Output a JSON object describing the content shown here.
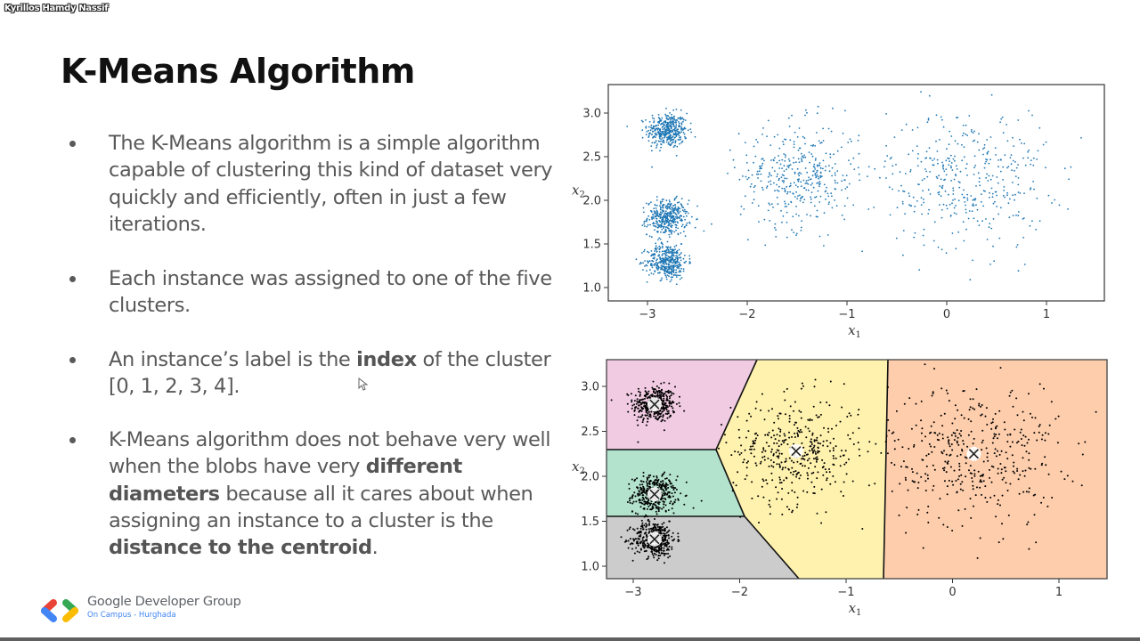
{
  "presenter": {
    "name": "Kyrillos Hamdy Nassif"
  },
  "slide": {
    "title": "K-Means Algorithm",
    "bullets": [
      {
        "parts": [
          {
            "text": "The K-Means algorithm is a simple algorithm capable of clustering this kind of dataset very quickly and efficiently, often in just a few iterations.",
            "bold": false
          }
        ]
      },
      {
        "parts": [
          {
            "text": "Each instance was assigned to one of the five clusters.",
            "bold": false
          }
        ]
      },
      {
        "parts": [
          {
            "text": "An instance’s label is the ",
            "bold": false
          },
          {
            "text": "index",
            "bold": true
          },
          {
            "text": " of the cluster [0, 1, 2, 3, 4].",
            "bold": false
          }
        ]
      },
      {
        "parts": [
          {
            "text": "K-Means algorithm does not behave very well when the blobs have very ",
            "bold": false
          },
          {
            "text": "different diameters",
            "bold": true
          },
          {
            "text": " because all it cares about when assigning an instance to a cluster is the ",
            "bold": false
          },
          {
            "text": "distance to the centroid",
            "bold": true
          },
          {
            "text": ".",
            "bold": false
          }
        ]
      }
    ]
  },
  "logo": {
    "name": "Google Developer Group",
    "subtitle": "On Campus - Hurghada",
    "colors": {
      "red": "#ea4335",
      "blue": "#4285f4",
      "green": "#34a853",
      "yellow": "#fbbc04"
    }
  },
  "chart_data": [
    {
      "type": "scatter",
      "title": "",
      "xlabel": "x1",
      "ylabel": "x2",
      "xlim": [
        -3.4,
        1.55
      ],
      "ylim": [
        0.85,
        3.3
      ],
      "xticks": [
        -3,
        -2,
        -1,
        0,
        1
      ],
      "yticks": [
        1.0,
        1.5,
        2.0,
        2.5,
        3.0
      ],
      "xtick_labels": [
        "−3",
        "−2",
        "−1",
        "0",
        "1"
      ],
      "ytick_labels": [
        "1.0",
        "1.5",
        "2.0",
        "2.5",
        "3.0"
      ],
      "grid": false,
      "point_color": "#1f77b4",
      "blobs": [
        {
          "center": [
            -2.8,
            2.8
          ],
          "std": 0.1,
          "n": 400
        },
        {
          "center": [
            -2.8,
            1.8
          ],
          "std": 0.1,
          "n": 400
        },
        {
          "center": [
            -2.8,
            1.3
          ],
          "std": 0.1,
          "n": 400
        },
        {
          "center": [
            -1.47,
            2.28
          ],
          "std": 0.3,
          "n": 400
        },
        {
          "center": [
            0.2,
            2.25
          ],
          "std": 0.4,
          "n": 400
        }
      ]
    },
    {
      "type": "scatter",
      "title": "",
      "xlabel": "x1",
      "ylabel": "x2",
      "xlim": [
        -3.25,
        1.45
      ],
      "ylim": [
        0.85,
        3.3
      ],
      "xticks": [
        -3,
        -2,
        -1,
        0,
        1
      ],
      "yticks": [
        1.0,
        1.5,
        2.0,
        2.5,
        3.0
      ],
      "xtick_labels": [
        "−3",
        "−2",
        "−1",
        "0",
        "1"
      ],
      "ytick_labels": [
        "1.0",
        "1.5",
        "2.0",
        "2.5",
        "3.0"
      ],
      "grid": false,
      "point_color": "#000000",
      "centroids": [
        {
          "x": -2.8,
          "y": 2.8,
          "label": "0"
        },
        {
          "x": -2.8,
          "y": 1.8,
          "label": "1"
        },
        {
          "x": -2.8,
          "y": 1.3,
          "label": "2"
        },
        {
          "x": -1.47,
          "y": 2.28,
          "label": "3"
        },
        {
          "x": 0.2,
          "y": 2.25,
          "label": "4"
        }
      ],
      "regions": [
        {
          "name": "cluster-top-left",
          "color": "#f1cbe2"
        },
        {
          "name": "cluster-mid-left",
          "color": "#b3e2cd"
        },
        {
          "name": "cluster-bottom-left",
          "color": "#cccccc"
        },
        {
          "name": "cluster-middle",
          "color": "#fff2ae"
        },
        {
          "name": "cluster-right",
          "color": "#fdcdac"
        }
      ],
      "decision_boundaries": true
    }
  ]
}
